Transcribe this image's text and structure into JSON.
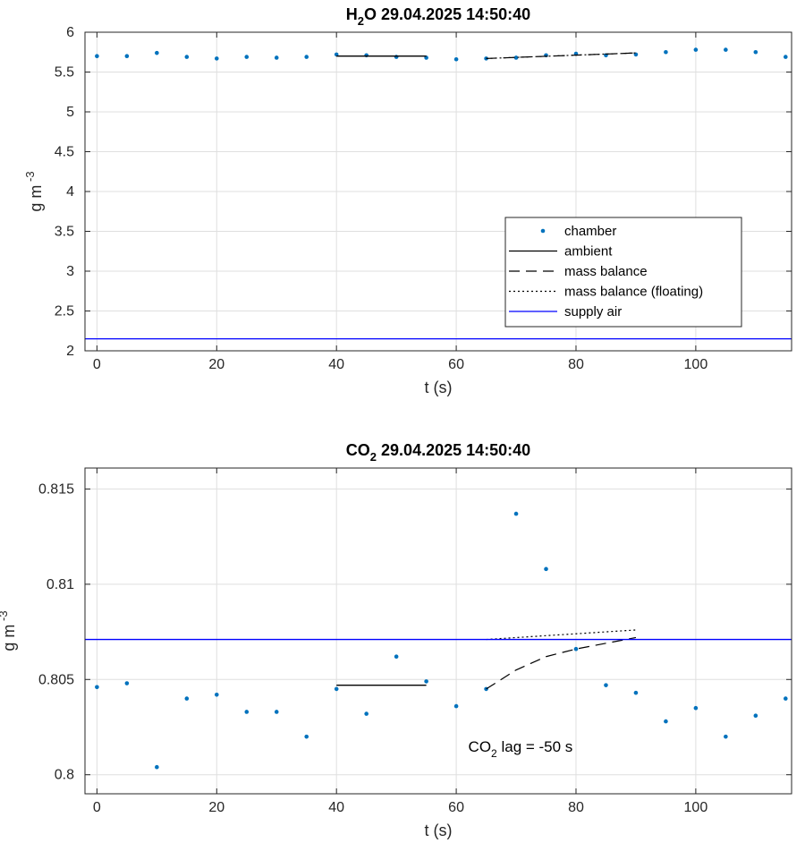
{
  "chart_data": [
    {
      "type": "scatter",
      "title": {
        "main": "H",
        "sub": "2",
        "rest": "O  29.04.2025 14:50:40"
      },
      "xlabel": "t (s)",
      "ylabel": {
        "main": "g m",
        "sup": "-3"
      },
      "xlim": [
        -2,
        116
      ],
      "ylim": [
        2,
        6
      ],
      "xticks": [
        0,
        20,
        40,
        60,
        80,
        100
      ],
      "yticks": [
        2,
        2.5,
        3,
        3.5,
        4,
        4.5,
        5,
        5.5,
        6
      ],
      "grid": true,
      "legend_position": "right",
      "legend": [
        {
          "label": "chamber",
          "style": "dot",
          "color": "#0072BD"
        },
        {
          "label": "ambient",
          "style": "solid",
          "color": "#000000"
        },
        {
          "label": "mass balance",
          "style": "dashed",
          "color": "#000000"
        },
        {
          "label": "mass balance (floating)",
          "style": "dotted",
          "color": "#000000"
        },
        {
          "label": "supply air",
          "style": "solid",
          "color": "#0000FF"
        }
      ],
      "series": [
        {
          "name": "chamber",
          "style": "dot",
          "color": "#0072BD",
          "x": [
            0,
            5,
            10,
            15,
            20,
            25,
            30,
            35,
            40,
            45,
            50,
            55,
            60,
            65,
            70,
            75,
            80,
            85,
            90,
            95,
            100,
            105,
            110,
            115
          ],
          "y": [
            5.7,
            5.7,
            5.74,
            5.69,
            5.67,
            5.69,
            5.68,
            5.69,
            5.72,
            5.71,
            5.69,
            5.68,
            5.66,
            5.67,
            5.68,
            5.71,
            5.73,
            5.71,
            5.72,
            5.75,
            5.78,
            5.78,
            5.75,
            5.69
          ]
        },
        {
          "name": "ambient",
          "style": "solid",
          "color": "#000000",
          "x": [
            40,
            55
          ],
          "y": [
            5.7,
            5.7
          ]
        },
        {
          "name": "mass balance",
          "style": "dashed",
          "color": "#000000",
          "x": [
            65,
            90
          ],
          "y": [
            5.67,
            5.74
          ]
        },
        {
          "name": "mass balance (floating)",
          "style": "dotted",
          "color": "#000000",
          "x": [
            65,
            90
          ],
          "y": [
            5.67,
            5.74
          ]
        },
        {
          "name": "supply air",
          "style": "solid",
          "color": "#0000FF",
          "x": [
            -2,
            116
          ],
          "y": [
            2.15,
            2.15
          ]
        }
      ]
    },
    {
      "type": "scatter",
      "title": {
        "main": "CO",
        "sub": "2",
        "rest": "  29.04.2025 14:50:40"
      },
      "xlabel": "t (s)",
      "ylabel": {
        "main": "g m",
        "sup": "-3"
      },
      "xlim": [
        -2,
        116
      ],
      "ylim": [
        0.799,
        0.8161
      ],
      "xticks": [
        0,
        20,
        40,
        60,
        80,
        100
      ],
      "yticks": [
        0.8,
        0.805,
        0.81,
        0.815
      ],
      "ytick_labels": [
        "0.8",
        "0.805",
        "0.81",
        "0.815"
      ],
      "grid": true,
      "annotation": {
        "main": "CO",
        "sub": "2",
        "rest": " lag = -50 s",
        "x": 65,
        "y": 0.8015
      },
      "series": [
        {
          "name": "chamber",
          "style": "dot",
          "color": "#0072BD",
          "x": [
            0,
            5,
            10,
            15,
            20,
            25,
            30,
            35,
            40,
            45,
            50,
            55,
            60,
            65,
            70,
            75,
            80,
            85,
            90,
            95,
            100,
            105,
            110,
            115
          ],
          "y": [
            0.8046,
            0.8048,
            0.8004,
            0.804,
            0.8042,
            0.8033,
            0.8033,
            0.802,
            0.8045,
            0.8032,
            0.8062,
            0.8049,
            0.8036,
            0.8045,
            0.8137,
            0.8108,
            0.8066,
            0.8047,
            0.8043,
            0.8028,
            0.8035,
            0.802,
            0.8031,
            0.804
          ]
        },
        {
          "name": "ambient",
          "style": "solid",
          "color": "#000000",
          "x": [
            40,
            55
          ],
          "y": [
            0.8047,
            0.8047
          ]
        },
        {
          "name": "mass balance",
          "style": "dashed",
          "color": "#000000",
          "x": [
            65,
            70,
            75,
            80,
            85,
            90
          ],
          "y": [
            0.8045,
            0.8055,
            0.8062,
            0.8066,
            0.8069,
            0.8072
          ]
        },
        {
          "name": "mass balance (floating)",
          "style": "dotted",
          "color": "#000000",
          "x": [
            65,
            90
          ],
          "y": [
            0.8071,
            0.8076
          ]
        },
        {
          "name": "supply air",
          "style": "solid",
          "color": "#0000FF",
          "x": [
            -2,
            116
          ],
          "y": [
            0.8071,
            0.8071
          ]
        }
      ]
    }
  ]
}
